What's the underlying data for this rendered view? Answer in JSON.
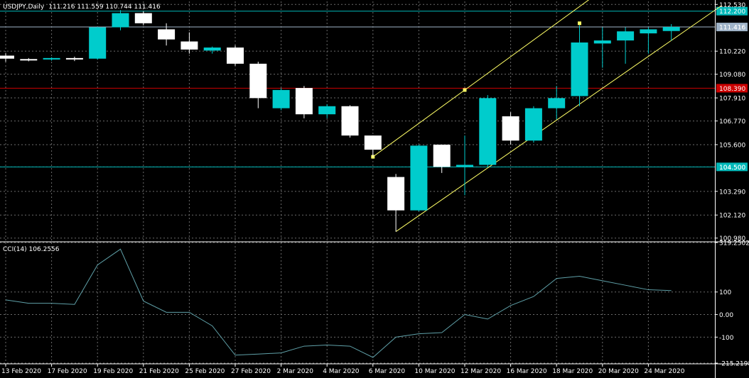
{
  "header": {
    "symbol": "USDJPY,Daily",
    "ohlc": "111.216 111.559 110.744 111.416"
  },
  "indicator": {
    "label": "CCI(14) 106.2556"
  },
  "colors": {
    "background": "#000000",
    "grid": "#6b6b6b",
    "bull_candle": "#00cccc",
    "bear_candle": "#ffffff",
    "channel": "#ffff66",
    "support_line": "#00b8b8",
    "current_price_line": "#9fb3c8",
    "red_line": "#cc0000",
    "cci_line": "#5fa0a8",
    "axis_text": "#ffffff"
  },
  "chart_data": [
    {
      "type": "candlestick",
      "title": "USDJPY,Daily",
      "x": [
        "13 Feb 2020",
        "14 Feb 2020",
        "17 Feb 2020",
        "18 Feb 2020",
        "19 Feb 2020",
        "20 Feb 2020",
        "21 Feb 2020",
        "24 Feb 2020",
        "25 Feb 2020",
        "26 Feb 2020",
        "27 Feb 2020",
        "28 Feb 2020",
        "2 Mar 2020",
        "3 Mar 2020",
        "4 Mar 2020",
        "5 Mar 2020",
        "6 Mar 2020",
        "9 Mar 2020",
        "10 Mar 2020",
        "11 Mar 2020",
        "12 Mar 2020",
        "13 Mar 2020",
        "16 Mar 2020",
        "17 Mar 2020",
        "18 Mar 2020",
        "19 Mar 2020",
        "20 Mar 2020",
        "23 Mar 2020",
        "24 Mar 2020",
        "25 Mar 2020"
      ],
      "x_tick_labels": [
        "13 Feb 2020",
        "17 Feb 2020",
        "19 Feb 2020",
        "21 Feb 2020",
        "25 Feb 2020",
        "27 Feb 2020",
        "2 Mar 2020",
        "4 Mar 2020",
        "6 Mar 2020",
        "10 Mar 2020",
        "12 Mar 2020",
        "16 Mar 2020",
        "18 Mar 2020",
        "20 Mar 2020",
        "24 Mar 2020"
      ],
      "candles": [
        {
          "date": "13 Feb 2020",
          "open": 110.0,
          "high": 110.12,
          "low": 109.7,
          "close": 109.85
        },
        {
          "date": "14 Feb 2020",
          "open": 109.83,
          "high": 109.88,
          "low": 109.72,
          "close": 109.8
        },
        {
          "date": "17 Feb 2020",
          "open": 109.81,
          "high": 109.92,
          "low": 109.75,
          "close": 109.88
        },
        {
          "date": "18 Feb 2020",
          "open": 109.88,
          "high": 109.95,
          "low": 109.73,
          "close": 109.86
        },
        {
          "date": "19 Feb 2020",
          "open": 109.85,
          "high": 111.42,
          "low": 109.8,
          "close": 111.4
        },
        {
          "date": "20 Feb 2020",
          "open": 111.4,
          "high": 112.25,
          "low": 111.25,
          "close": 112.1
        },
        {
          "date": "21 Feb 2020",
          "open": 112.1,
          "high": 112.2,
          "low": 111.5,
          "close": 111.6
        },
        {
          "date": "24 Feb 2020",
          "open": 111.3,
          "high": 111.6,
          "low": 110.5,
          "close": 110.8
        },
        {
          "date": "25 Feb 2020",
          "open": 110.7,
          "high": 111.15,
          "low": 110.1,
          "close": 110.3
        },
        {
          "date": "26 Feb 2020",
          "open": 110.25,
          "high": 110.45,
          "low": 110.1,
          "close": 110.4
        },
        {
          "date": "27 Feb 2020",
          "open": 110.4,
          "high": 110.5,
          "low": 109.5,
          "close": 109.6
        },
        {
          "date": "28 Feb 2020",
          "open": 109.6,
          "high": 109.7,
          "low": 107.4,
          "close": 107.9
        },
        {
          "date": "2 Mar 2020",
          "open": 107.4,
          "high": 108.4,
          "low": 107.3,
          "close": 108.3
        },
        {
          "date": "3 Mar 2020",
          "open": 108.4,
          "high": 108.5,
          "low": 106.9,
          "close": 107.1
        },
        {
          "date": "4 Mar 2020",
          "open": 107.1,
          "high": 107.6,
          "low": 106.9,
          "close": 107.5
        },
        {
          "date": "5 Mar 2020",
          "open": 107.5,
          "high": 107.55,
          "low": 105.95,
          "close": 106.05
        },
        {
          "date": "6 Mar 2020",
          "open": 106.05,
          "high": 106.05,
          "low": 105.0,
          "close": 105.35
        },
        {
          "date": "9 Mar 2020",
          "open": 104.0,
          "high": 104.15,
          "low": 101.3,
          "close": 102.35
        },
        {
          "date": "10 Mar 2020",
          "open": 102.35,
          "high": 105.6,
          "low": 102.3,
          "close": 105.55
        },
        {
          "date": "11 Mar 2020",
          "open": 105.6,
          "high": 105.6,
          "low": 104.2,
          "close": 104.5
        },
        {
          "date": "12 Mar 2020",
          "open": 104.5,
          "high": 106.05,
          "low": 103.1,
          "close": 104.6
        },
        {
          "date": "13 Mar 2020",
          "open": 104.6,
          "high": 108.05,
          "low": 104.5,
          "close": 107.9
        },
        {
          "date": "16 Mar 2020",
          "open": 107.0,
          "high": 107.2,
          "low": 105.6,
          "close": 105.8
        },
        {
          "date": "17 Mar 2020",
          "open": 105.8,
          "high": 107.5,
          "low": 105.7,
          "close": 107.4
        },
        {
          "date": "18 Mar 2020",
          "open": 107.4,
          "high": 108.5,
          "low": 106.85,
          "close": 107.9
        },
        {
          "date": "19 Mar 2020",
          "open": 108.0,
          "high": 111.5,
          "low": 107.5,
          "close": 110.65
        },
        {
          "date": "20 Mar 2020",
          "open": 110.6,
          "high": 111.4,
          "low": 109.4,
          "close": 110.75
        },
        {
          "date": "23 Mar 2020",
          "open": 110.75,
          "high": 111.4,
          "low": 109.6,
          "close": 111.2
        },
        {
          "date": "24 Mar 2020",
          "open": 111.1,
          "high": 111.4,
          "low": 110.1,
          "close": 111.3
        },
        {
          "date": "25 Mar 2020",
          "open": 111.216,
          "high": 111.559,
          "low": 110.744,
          "close": 111.416
        }
      ],
      "y_tick_labels": [
        "112.530",
        "111.416",
        "110.220",
        "109.080",
        "107.910",
        "106.770",
        "105.600",
        "104.500",
        "103.290",
        "102.120",
        "100.980"
      ],
      "ylim": [
        100.83,
        112.68
      ],
      "horizontal_lines": [
        {
          "price": 112.2,
          "label": "112.200",
          "color": "#00b8b8"
        },
        {
          "price": 111.416,
          "label": "111.416",
          "color": "#9fb3c8"
        },
        {
          "price": 108.39,
          "label": "108.390",
          "color": "#cc0000"
        },
        {
          "price": 104.5,
          "label": "104.500",
          "color": "#00b8b8"
        }
      ],
      "channel": {
        "upper": [
          {
            "date": "6 Mar 2020",
            "price": 105.0
          },
          {
            "date": "12 Mar 2020",
            "price": 108.3
          }
        ],
        "upper_points": [
          {
            "date": "6 Mar 2020",
            "price": 105.0
          },
          {
            "date": "12 Mar 2020",
            "price": 108.3
          },
          {
            "date": "19 Mar 2020",
            "price": 111.6
          }
        ],
        "lower": [
          {
            "date": "9 Mar 2020",
            "price": 101.3
          },
          {
            "date": "19 Mar 2020",
            "price": 107.6
          }
        ]
      },
      "grid": true
    },
    {
      "type": "line",
      "title": "CCI(14) 106.2556",
      "x": [
        "13 Feb 2020",
        "14 Feb 2020",
        "17 Feb 2020",
        "18 Feb 2020",
        "19 Feb 2020",
        "20 Feb 2020",
        "21 Feb 2020",
        "24 Feb 2020",
        "25 Feb 2020",
        "26 Feb 2020",
        "27 Feb 2020",
        "28 Feb 2020",
        "2 Mar 2020",
        "3 Mar 2020",
        "4 Mar 2020",
        "5 Mar 2020",
        "6 Mar 2020",
        "9 Mar 2020",
        "10 Mar 2020",
        "11 Mar 2020",
        "12 Mar 2020",
        "13 Mar 2020",
        "16 Mar 2020",
        "17 Mar 2020",
        "18 Mar 2020",
        "19 Mar 2020",
        "20 Mar 2020",
        "23 Mar 2020",
        "24 Mar 2020",
        "25 Mar 2020"
      ],
      "values": [
        65,
        50,
        50,
        45,
        220,
        290,
        60,
        10,
        10,
        -50,
        -180,
        -175,
        -170,
        -140,
        -135,
        -140,
        -190,
        -100,
        -85,
        -80,
        0,
        -20,
        40,
        80,
        160,
        170,
        150,
        130,
        110,
        106.2556
      ],
      "y_tick_labels": [
        "319.2502",
        "100",
        "0.00",
        "-100",
        "-215.2198"
      ],
      "ylim": [
        -215.2198,
        319.2502
      ],
      "grid": true
    }
  ]
}
